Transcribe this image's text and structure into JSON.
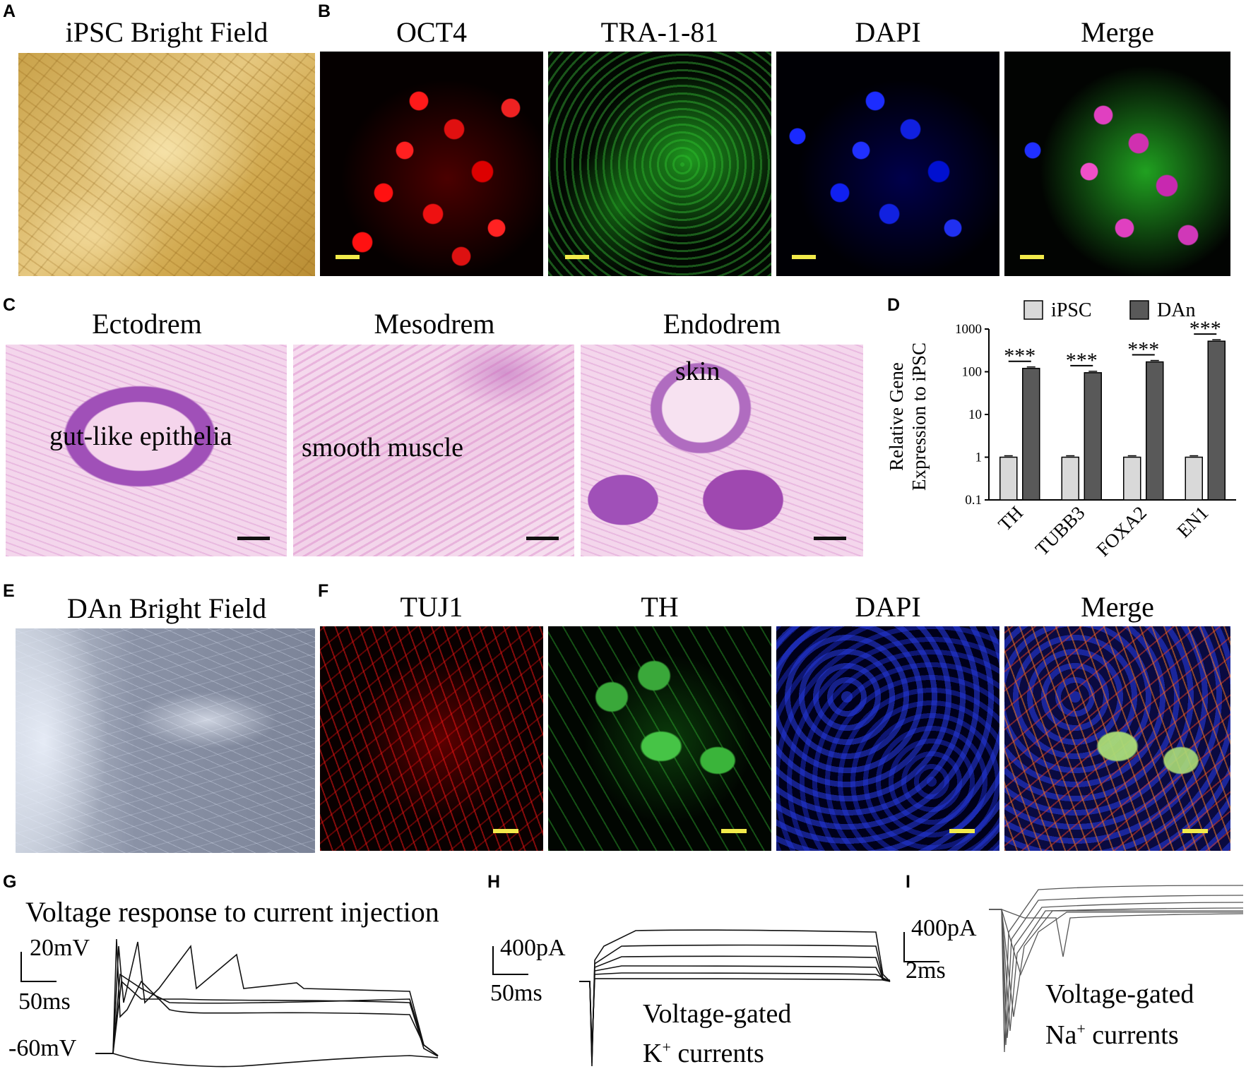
{
  "panel_labels": {
    "a": "A",
    "b": "B",
    "c": "C",
    "d": "D",
    "e": "E",
    "f": "F",
    "g": "G",
    "h": "H",
    "i": "I"
  },
  "panelA": {
    "title": "iPSC Bright Field"
  },
  "panelB": {
    "titles": [
      "OCT4",
      "TRA-1-81",
      "DAPI",
      "Merge"
    ]
  },
  "panelC": {
    "titles": [
      "Ectodrem",
      "Mesodrem",
      "Endodrem"
    ],
    "annotations": [
      "gut-like epithelia",
      "smooth muscle",
      "skin"
    ]
  },
  "panelE": {
    "title": "DAn Bright Field"
  },
  "panelF": {
    "titles": [
      "TUJ1",
      "TH",
      "DAPI",
      "Merge"
    ]
  },
  "panelG": {
    "title": "Voltage response to current injection",
    "scale_v": "20mV",
    "scale_t": "50ms",
    "baseline": "-60mV"
  },
  "panelH": {
    "scale_i": "400pA",
    "scale_t": "50ms",
    "caption_line1": "Voltage-gated",
    "caption_line2": "K",
    "caption_sup": "+",
    "caption_rest": " currents"
  },
  "panelI": {
    "scale_i": "400pA",
    "scale_t": "2ms",
    "caption_line1": "Voltage-gated",
    "caption_line2": "Na",
    "caption_sup": "+",
    "caption_rest": " currents"
  },
  "chart_data": {
    "type": "bar",
    "ylabel_line1": "Relative Gene",
    "ylabel_line2": "Expression to iPSC",
    "yscale": "log",
    "ylim": [
      0.1,
      1000
    ],
    "yticks": [
      "0.1",
      "1",
      "10",
      "100",
      "1000"
    ],
    "categories": [
      "TH",
      "TUBB3",
      "FOXA2",
      "EN1"
    ],
    "series": [
      {
        "name": "iPSC",
        "color": "#d9d9d9",
        "values": [
          1,
          1,
          1,
          1
        ]
      },
      {
        "name": "DAn",
        "color": "#595959",
        "values": [
          120,
          95,
          170,
          520
        ]
      }
    ],
    "significance": [
      "***",
      "***",
      "***",
      "***"
    ],
    "legend_position": "top"
  }
}
